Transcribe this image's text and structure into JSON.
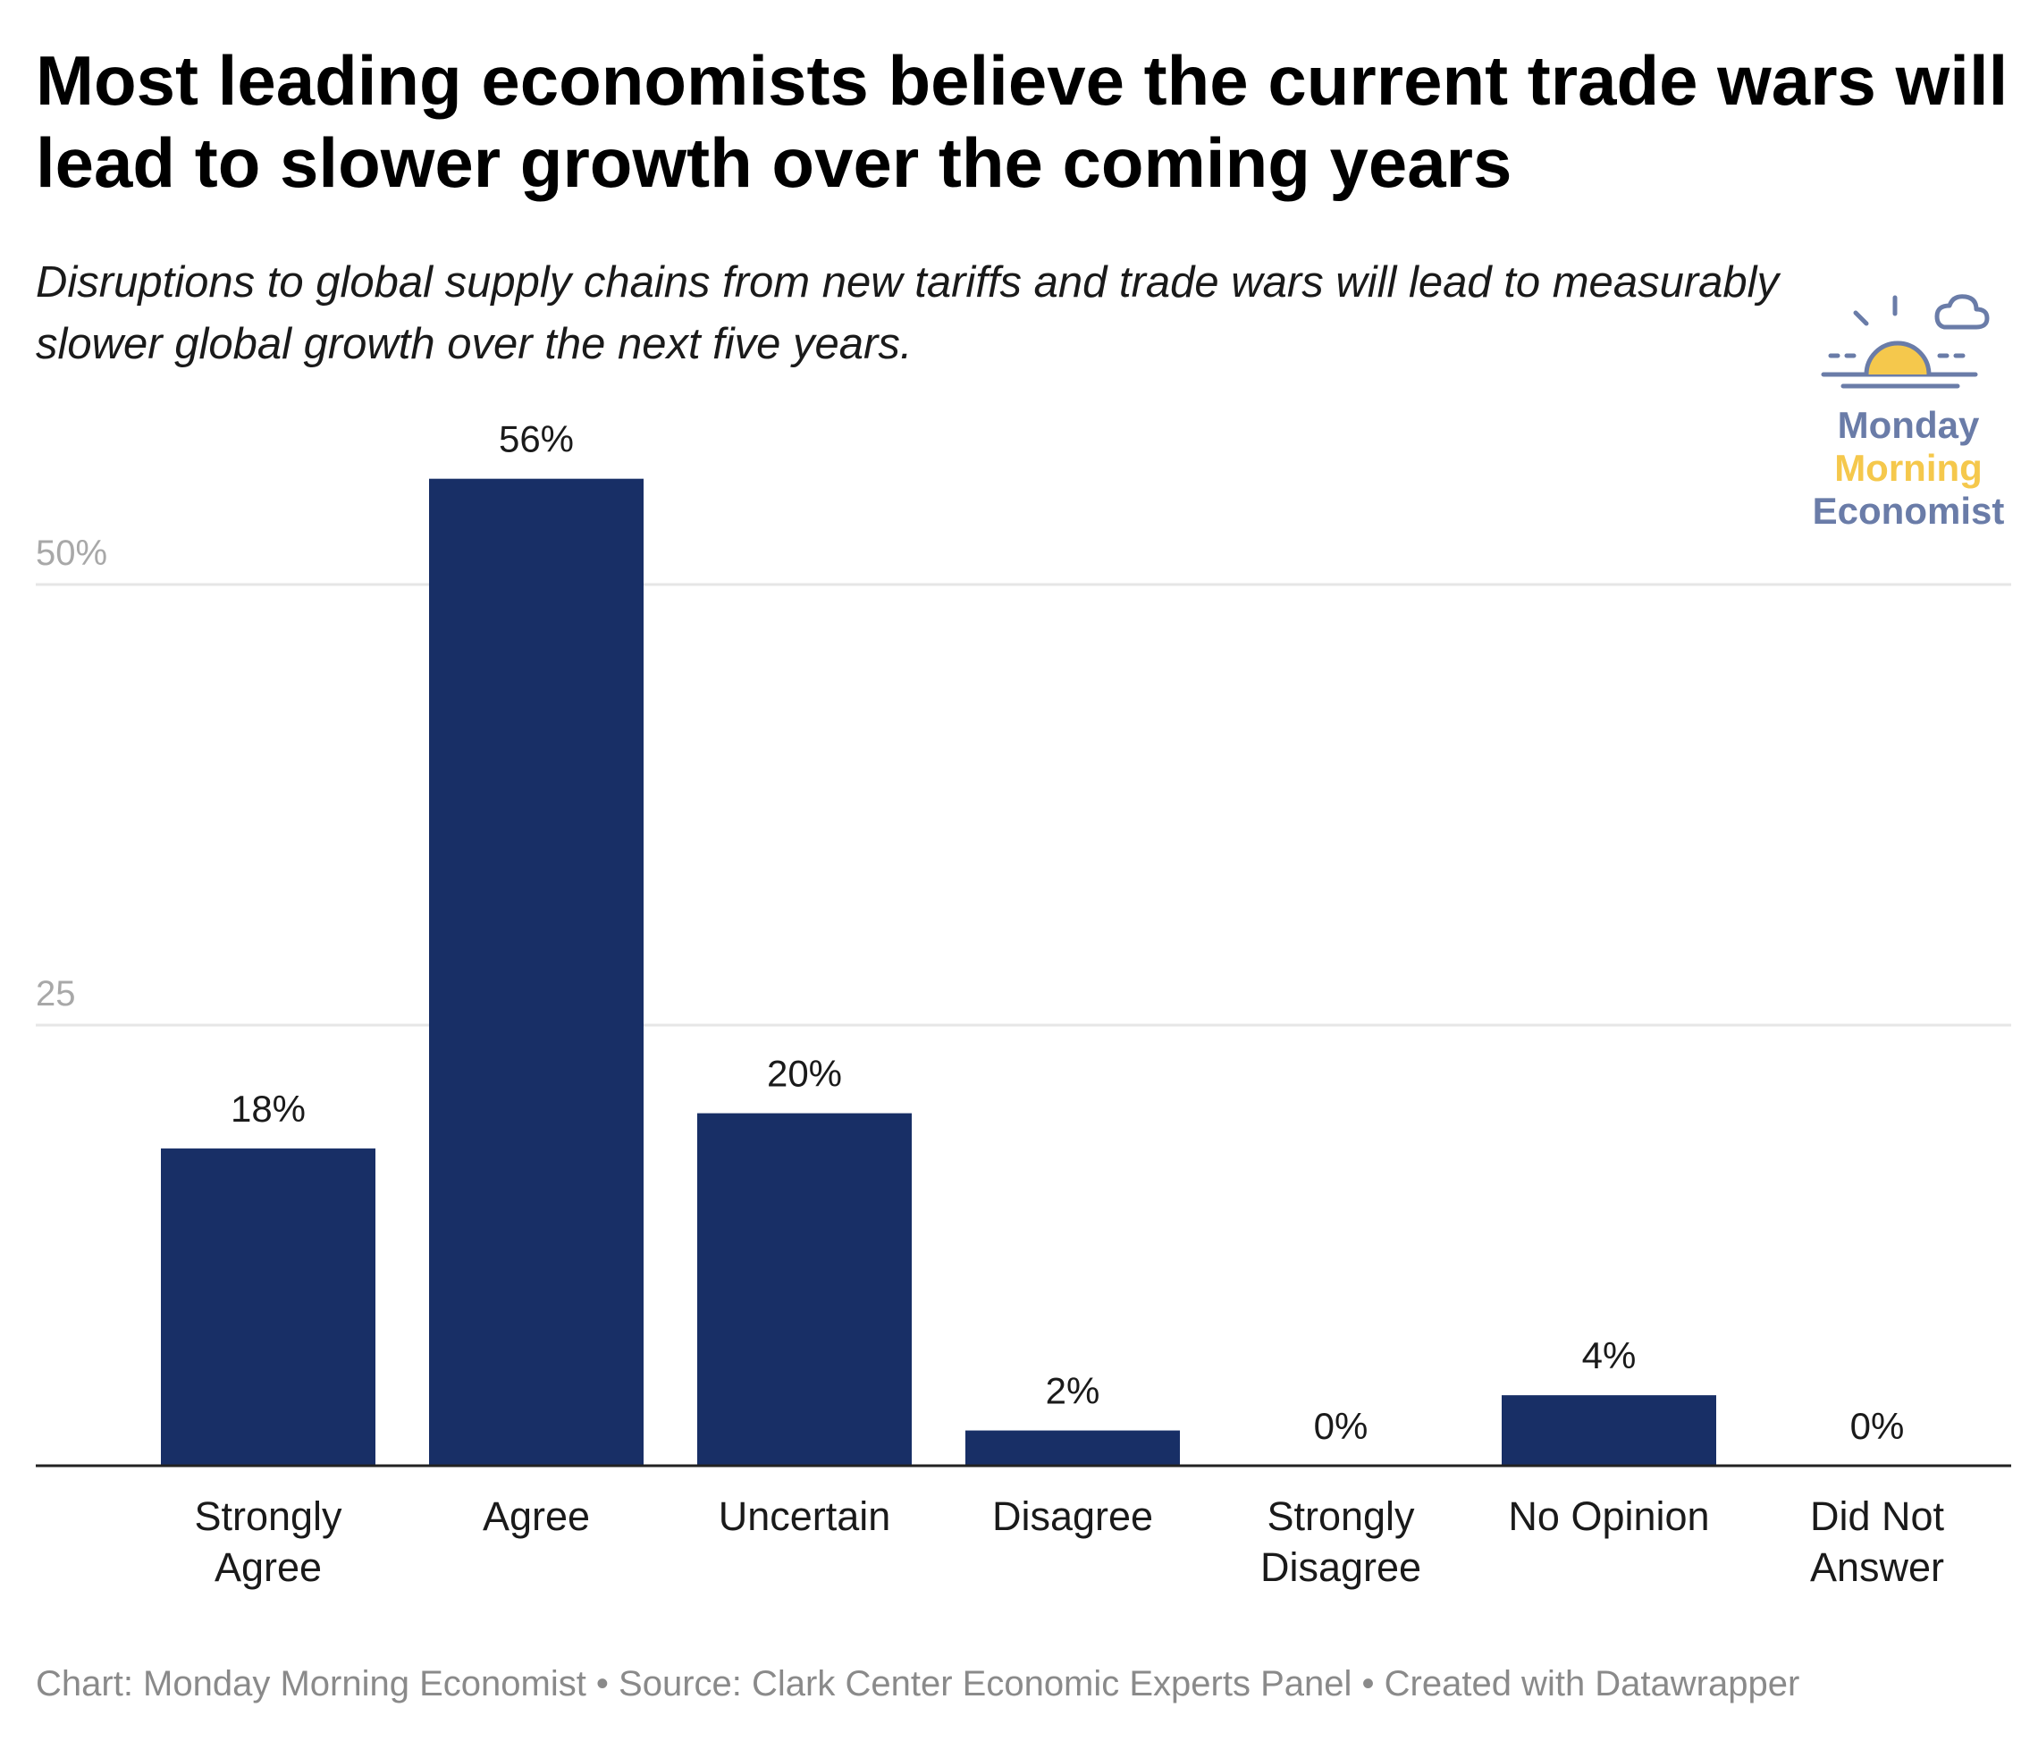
{
  "title": "Most leading economists believe the current trade wars will lead to slower growth over the coming years",
  "subtitle": "Disruptions to global supply chains from new tariffs and trade wars will lead to measurably slower global growth over the next five years.",
  "logo": {
    "line1": "Monday",
    "line2": "Morning",
    "line3": "Economist",
    "icon": "sun-and-cloud-icon",
    "colors": {
      "navy": "#6a7ca8",
      "sun": "#f5c84c"
    }
  },
  "footer": "Chart: Monday Morning Economist • Source: Clark Center Economic Experts Panel • Created with Datawrapper",
  "chart_data": {
    "type": "bar",
    "categories": [
      [
        "Strongly",
        "Agree"
      ],
      [
        "Agree"
      ],
      [
        "Uncertain"
      ],
      [
        "Disagree"
      ],
      [
        "Strongly",
        "Disagree"
      ],
      [
        "No Opinion"
      ],
      [
        "Did Not",
        "Answer"
      ]
    ],
    "values": [
      18,
      56,
      20,
      2,
      0,
      4,
      0
    ],
    "value_labels": [
      "18%",
      "56%",
      "20%",
      "2%",
      "0%",
      "4%",
      "0%"
    ],
    "yticks": [
      {
        "value": 25,
        "label": "25"
      },
      {
        "value": 50,
        "label": "50%"
      }
    ],
    "ylim": [
      0,
      60
    ],
    "grid": true,
    "bar_color": "#182f66",
    "gridline_color": "#e6e6e6",
    "tick_label_color": "#a8a8a8"
  }
}
